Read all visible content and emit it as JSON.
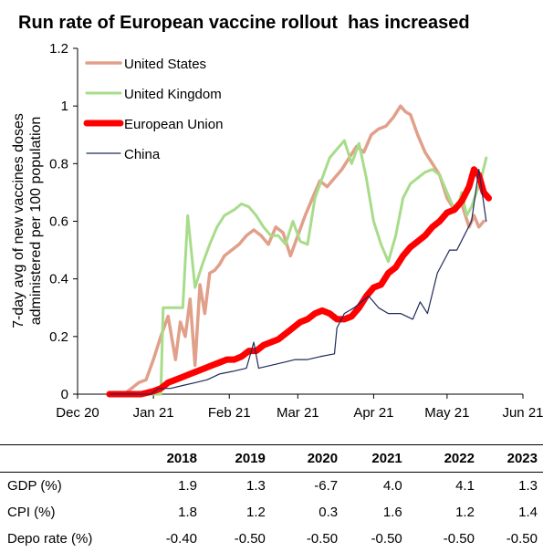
{
  "chart_data": {
    "type": "line",
    "title": "Run rate of European vaccine rollout  has increased",
    "ylabel_line1": "7-day avg of new vaccines doses",
    "ylabel_line2": "administered per 100 population",
    "ylim": [
      0,
      1.2
    ],
    "yticks": [
      "0",
      "0.2",
      "0.4",
      "0.6",
      "0.8",
      "1",
      "1.2"
    ],
    "xticks": [
      "Dec 20",
      "Jan 21",
      "Feb 21",
      "Mar 21",
      "Apr 21",
      "May 21",
      "Jun 21"
    ],
    "grid": false,
    "legend_position": "top-left",
    "series": [
      {
        "name": "United States",
        "color": "#e0a08a",
        "x": [
          "2020-12-14",
          "2020-12-20",
          "2020-12-23",
          "2020-12-26",
          "2020-12-29",
          "2021-01-01",
          "2021-01-04",
          "2021-01-07",
          "2021-01-10",
          "2021-01-12",
          "2021-01-14",
          "2021-01-16",
          "2021-01-18",
          "2021-01-20",
          "2021-01-22",
          "2021-01-24",
          "2021-01-26",
          "2021-01-28",
          "2021-01-30",
          "2021-02-02",
          "2021-02-05",
          "2021-02-08",
          "2021-02-11",
          "2021-02-14",
          "2021-02-17",
          "2021-02-20",
          "2021-02-23",
          "2021-02-26",
          "2021-03-01",
          "2021-03-04",
          "2021-03-07",
          "2021-03-10",
          "2021-03-13",
          "2021-03-16",
          "2021-03-19",
          "2021-03-22",
          "2021-03-25",
          "2021-03-28",
          "2021-03-31",
          "2021-04-03",
          "2021-04-06",
          "2021-04-09",
          "2021-04-12",
          "2021-04-14",
          "2021-04-16",
          "2021-04-19",
          "2021-04-22",
          "2021-04-25",
          "2021-04-28",
          "2021-05-01",
          "2021-05-04",
          "2021-05-07",
          "2021-05-10",
          "2021-05-12",
          "2021-05-14",
          "2021-05-16"
        ],
        "values": [
          0.0,
          0.0,
          0.02,
          0.04,
          0.05,
          0.12,
          0.2,
          0.27,
          0.12,
          0.25,
          0.2,
          0.33,
          0.1,
          0.38,
          0.28,
          0.42,
          0.43,
          0.45,
          0.48,
          0.5,
          0.52,
          0.55,
          0.57,
          0.55,
          0.52,
          0.58,
          0.56,
          0.48,
          0.55,
          0.62,
          0.68,
          0.74,
          0.72,
          0.75,
          0.78,
          0.82,
          0.86,
          0.84,
          0.9,
          0.92,
          0.93,
          0.96,
          1.0,
          0.98,
          0.97,
          0.9,
          0.84,
          0.8,
          0.76,
          0.68,
          0.64,
          0.66,
          0.58,
          0.62,
          0.58,
          0.6
        ]
      },
      {
        "name": "United Kingdom",
        "color": "#a8dc8a",
        "x": [
          "2020-12-14",
          "2021-01-04",
          "2021-01-05",
          "2021-01-13",
          "2021-01-15",
          "2021-01-18",
          "2021-01-21",
          "2021-01-24",
          "2021-01-27",
          "2021-01-30",
          "2021-02-03",
          "2021-02-06",
          "2021-02-09",
          "2021-02-12",
          "2021-02-15",
          "2021-02-18",
          "2021-02-21",
          "2021-02-24",
          "2021-02-27",
          "2021-03-02",
          "2021-03-05",
          "2021-03-08",
          "2021-03-11",
          "2021-03-14",
          "2021-03-17",
          "2021-03-20",
          "2021-03-23",
          "2021-03-26",
          "2021-03-29",
          "2021-04-01",
          "2021-04-04",
          "2021-04-07",
          "2021-04-10",
          "2021-04-13",
          "2021-04-16",
          "2021-04-19",
          "2021-04-22",
          "2021-04-25",
          "2021-04-28",
          "2021-05-01",
          "2021-05-03",
          "2021-05-05",
          "2021-05-07",
          "2021-05-09",
          "2021-05-11",
          "2021-05-13",
          "2021-05-15",
          "2021-05-17"
        ],
        "values": [
          0.0,
          0.0,
          0.3,
          0.3,
          0.62,
          0.37,
          0.45,
          0.52,
          0.58,
          0.62,
          0.64,
          0.66,
          0.65,
          0.62,
          0.58,
          0.55,
          0.55,
          0.52,
          0.6,
          0.53,
          0.52,
          0.68,
          0.75,
          0.82,
          0.85,
          0.88,
          0.8,
          0.87,
          0.75,
          0.6,
          0.52,
          0.46,
          0.55,
          0.68,
          0.73,
          0.75,
          0.77,
          0.78,
          0.76,
          0.7,
          0.66,
          0.64,
          0.7,
          0.62,
          0.65,
          0.7,
          0.75,
          0.82
        ]
      },
      {
        "name": "European Union",
        "color": "#ff0000",
        "x": [
          "2020-12-14",
          "2020-12-27",
          "2021-01-01",
          "2021-01-04",
          "2021-01-07",
          "2021-01-10",
          "2021-01-13",
          "2021-01-16",
          "2021-01-19",
          "2021-01-22",
          "2021-01-25",
          "2021-01-28",
          "2021-01-31",
          "2021-02-03",
          "2021-02-06",
          "2021-02-09",
          "2021-02-12",
          "2021-02-15",
          "2021-02-18",
          "2021-02-21",
          "2021-02-24",
          "2021-02-27",
          "2021-03-02",
          "2021-03-05",
          "2021-03-08",
          "2021-03-11",
          "2021-03-14",
          "2021-03-17",
          "2021-03-20",
          "2021-03-23",
          "2021-03-26",
          "2021-03-29",
          "2021-04-01",
          "2021-04-04",
          "2021-04-07",
          "2021-04-10",
          "2021-04-13",
          "2021-04-16",
          "2021-04-19",
          "2021-04-22",
          "2021-04-25",
          "2021-04-28",
          "2021-05-01",
          "2021-05-04",
          "2021-05-07",
          "2021-05-10",
          "2021-05-12",
          "2021-05-14",
          "2021-05-16",
          "2021-05-18"
        ],
        "values": [
          0.0,
          0.0,
          0.01,
          0.02,
          0.04,
          0.05,
          0.06,
          0.07,
          0.08,
          0.09,
          0.1,
          0.11,
          0.12,
          0.12,
          0.13,
          0.15,
          0.15,
          0.17,
          0.18,
          0.19,
          0.21,
          0.23,
          0.25,
          0.26,
          0.28,
          0.29,
          0.28,
          0.26,
          0.26,
          0.27,
          0.3,
          0.34,
          0.37,
          0.38,
          0.42,
          0.44,
          0.48,
          0.51,
          0.53,
          0.55,
          0.58,
          0.6,
          0.63,
          0.64,
          0.67,
          0.72,
          0.78,
          0.76,
          0.7,
          0.68
        ]
      },
      {
        "name": "China",
        "color": "#1f2a5a",
        "x": [
          "2020-12-14",
          "2020-12-31",
          "2021-01-03",
          "2021-01-08",
          "2021-01-13",
          "2021-01-18",
          "2021-01-23",
          "2021-01-28",
          "2021-02-03",
          "2021-02-08",
          "2021-02-11",
          "2021-02-13",
          "2021-02-18",
          "2021-02-23",
          "2021-02-28",
          "2021-03-05",
          "2021-03-10",
          "2021-03-16",
          "2021-03-17",
          "2021-03-20",
          "2021-03-24",
          "2021-03-27",
          "2021-03-30",
          "2021-04-03",
          "2021-04-07",
          "2021-04-12",
          "2021-04-17",
          "2021-04-20",
          "2021-04-23",
          "2021-04-27",
          "2021-05-02",
          "2021-05-05",
          "2021-05-08",
          "2021-05-11",
          "2021-05-14",
          "2021-05-17"
        ],
        "values": [
          0.0,
          0.0,
          0.02,
          0.02,
          0.03,
          0.04,
          0.05,
          0.07,
          0.08,
          0.09,
          0.18,
          0.09,
          0.1,
          0.11,
          0.12,
          0.12,
          0.13,
          0.14,
          0.23,
          0.28,
          0.3,
          0.32,
          0.34,
          0.3,
          0.28,
          0.28,
          0.26,
          0.32,
          0.28,
          0.42,
          0.5,
          0.5,
          0.55,
          0.6,
          0.78,
          0.6
        ]
      }
    ]
  },
  "table": {
    "headers": [
      "",
      "2018",
      "2019",
      "2020",
      "2021",
      "2022",
      "2023"
    ],
    "rows": [
      {
        "label": "GDP (%)",
        "values": [
          "1.9",
          "1.3",
          "-6.7",
          "4.0",
          "4.1",
          "1.3"
        ]
      },
      {
        "label": "CPI (%)",
        "values": [
          "1.8",
          "1.2",
          "0.3",
          "1.6",
          "1.2",
          "1.4"
        ]
      },
      {
        "label": "Depo rate (%)",
        "values": [
          "-0.40",
          "-0.50",
          "-0.50",
          "-0.50",
          "-0.50",
          "-0.50"
        ]
      }
    ]
  }
}
